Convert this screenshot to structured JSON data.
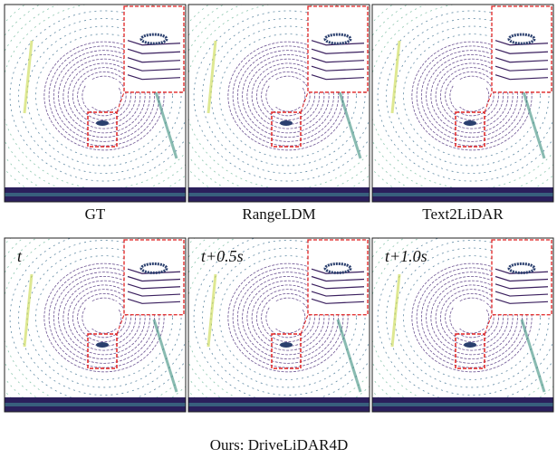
{
  "top_row": {
    "labels": [
      "GT",
      "RangeLDM",
      "Text2LiDAR"
    ]
  },
  "bottom_row": {
    "time_labels": [
      "t",
      "t+0.5s",
      "t+1.0s"
    ],
    "caption": "Ours: DriveLiDAR4D"
  }
}
